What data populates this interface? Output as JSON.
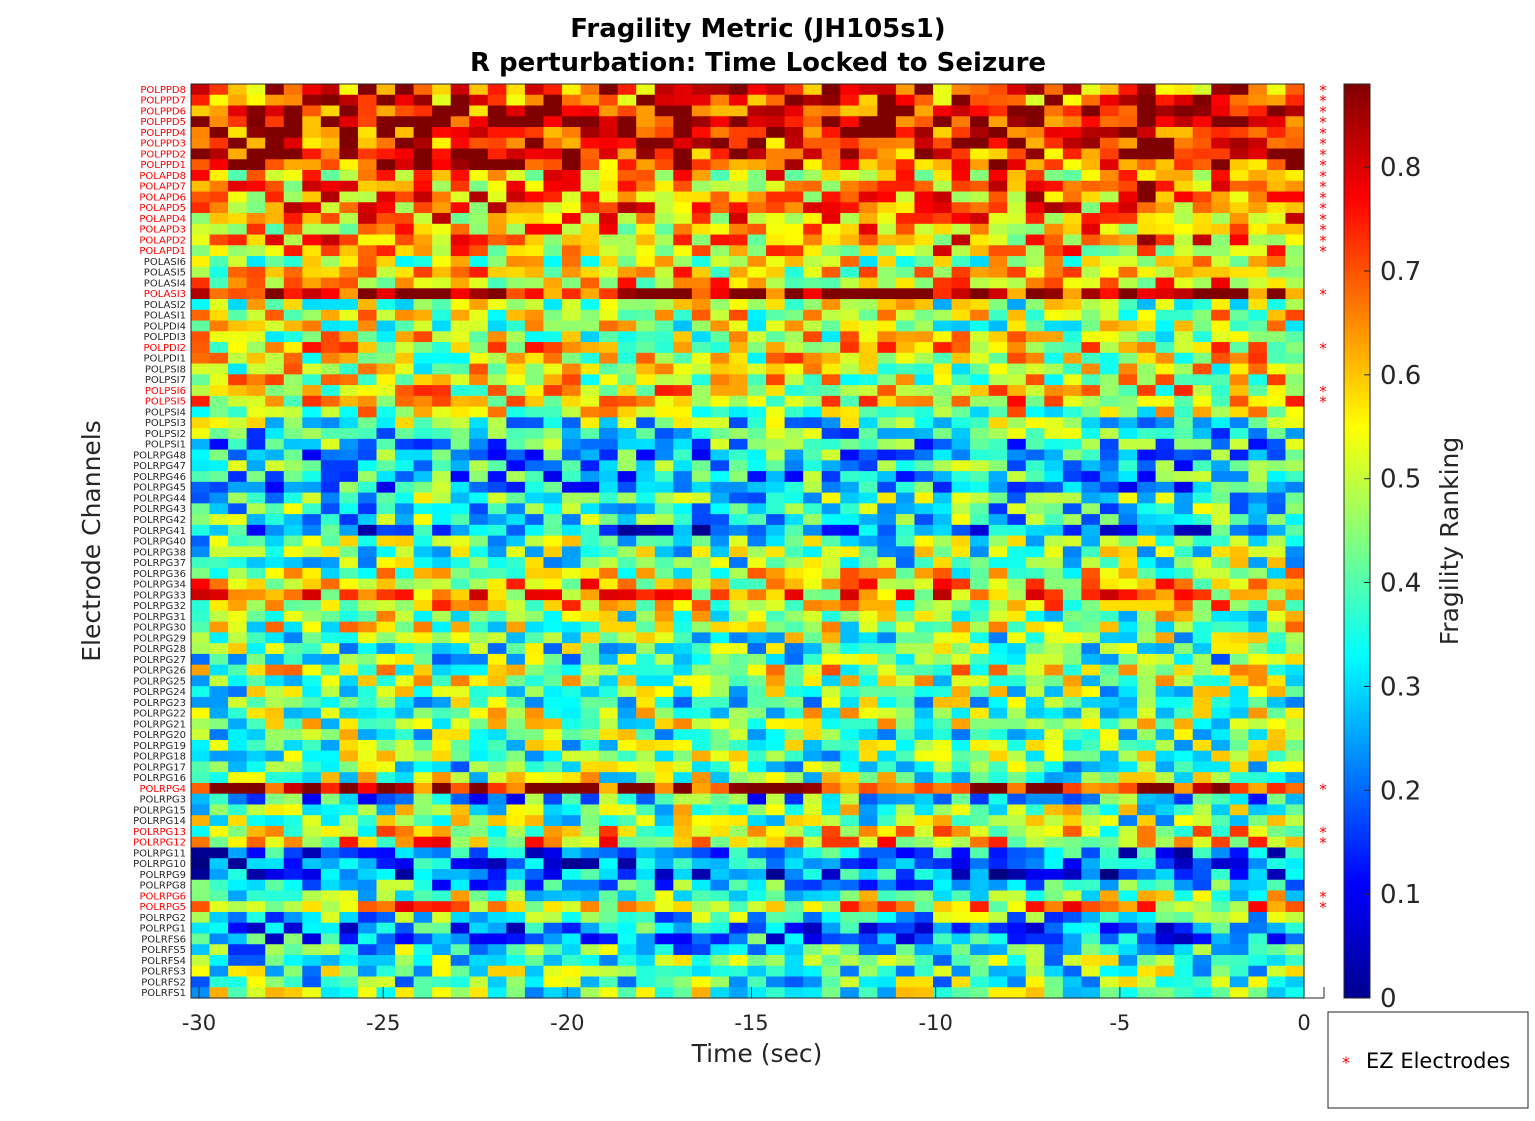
{
  "chart_data": {
    "type": "heatmap",
    "title": "Fragility Metric (JH105s1)",
    "subtitle": "R perturbation:  Time Locked to Seizure",
    "xlabel": "Time (sec)",
    "ylabel": "Electrode Channels",
    "colorbar_label": "Fragility Ranking",
    "colormap": "jet",
    "xlim": [
      -30,
      0
    ],
    "x_ticks": [
      -30,
      -25,
      -20,
      -15,
      -10,
      -5,
      0
    ],
    "clim": [
      0,
      0.88
    ],
    "colorbar_ticks": [
      0,
      0.1,
      0.2,
      0.3,
      0.4,
      0.5,
      0.6,
      0.7,
      0.8
    ],
    "n_time_windows": 60,
    "channels": [
      "POLPPD8",
      "POLPPD7",
      "POLPPD6",
      "POLPPD5",
      "POLPPD4",
      "POLPPD3",
      "POLPPD2",
      "POLPPD1",
      "POLAPD8",
      "POLAPD7",
      "POLAPD6",
      "POLAPD5",
      "POLAPD4",
      "POLAPD3",
      "POLAPD2",
      "POLAPD1",
      "POLASI6",
      "POLASI5",
      "POLASI4",
      "POLASI3",
      "POLASI2",
      "POLASI1",
      "POLPDI4",
      "POLPDI3",
      "POLPDI2",
      "POLPDI1",
      "POLPSI8",
      "POLPSI7",
      "POLPSI6",
      "POLPSI5",
      "POLPSI4",
      "POLPSI3",
      "POLPSI2",
      "POLPSI1",
      "POLRPG48",
      "POLRPG47",
      "POLRPG46",
      "POLRPG45",
      "POLRPG44",
      "POLRPG43",
      "POLRPG42",
      "POLRPG41",
      "POLRPG40",
      "POLRPG38",
      "POLRPG37",
      "POLRPG36",
      "POLRPG34",
      "POLRPG33",
      "POLRPG32",
      "POLRPG31",
      "POLRPG30",
      "POLRPG29",
      "POLRPG28",
      "POLRPG27",
      "POLRPG26",
      "POLRPG25",
      "POLRPG24",
      "POLRPG23",
      "POLRPG22",
      "POLRPG21",
      "POLRPG20",
      "POLRPG19",
      "POLRPG18",
      "POLRPG17",
      "POLRPG16",
      "POLRPG4",
      "POLRPG3",
      "POLRPG15",
      "POLRPG14",
      "POLRPG13",
      "POLRPG12",
      "POLRPG11",
      "POLRPG10",
      "POLRPG9",
      "POLRPG8",
      "POLRPG6",
      "POLRPG5",
      "POLRPG2",
      "POLRPG1",
      "POLRFS6",
      "POLRFS5",
      "POLRFS4",
      "POLRFS3",
      "POLRFS2",
      "POLRFS1"
    ],
    "ez_electrodes": [
      "POLPPD8",
      "POLPPD7",
      "POLPPD6",
      "POLPPD5",
      "POLPPD4",
      "POLPPD3",
      "POLPPD2",
      "POLPPD1",
      "POLAPD8",
      "POLAPD7",
      "POLAPD6",
      "POLAPD5",
      "POLAPD4",
      "POLAPD3",
      "POLAPD2",
      "POLAPD1",
      "POLASI3",
      "POLPDI2",
      "POLPSI6",
      "POLPSI5",
      "POLRPG4",
      "POLRPG13",
      "POLRPG12",
      "POLRPG6",
      "POLRPG5"
    ],
    "channel_mean_fragility": [
      0.72,
      0.72,
      0.78,
      0.8,
      0.78,
      0.77,
      0.76,
      0.75,
      0.6,
      0.63,
      0.65,
      0.64,
      0.63,
      0.6,
      0.62,
      0.6,
      0.5,
      0.55,
      0.58,
      0.82,
      0.45,
      0.5,
      0.48,
      0.5,
      0.55,
      0.52,
      0.5,
      0.52,
      0.55,
      0.58,
      0.5,
      0.38,
      0.35,
      0.32,
      0.3,
      0.32,
      0.3,
      0.3,
      0.38,
      0.35,
      0.35,
      0.22,
      0.4,
      0.42,
      0.4,
      0.5,
      0.58,
      0.62,
      0.55,
      0.45,
      0.48,
      0.42,
      0.4,
      0.38,
      0.5,
      0.45,
      0.42,
      0.4,
      0.45,
      0.45,
      0.42,
      0.4,
      0.42,
      0.38,
      0.45,
      0.82,
      0.3,
      0.45,
      0.42,
      0.52,
      0.58,
      0.22,
      0.2,
      0.2,
      0.3,
      0.45,
      0.6,
      0.35,
      0.25,
      0.25,
      0.35,
      0.38,
      0.4,
      0.38,
      0.42
    ],
    "seizure_onset_spike_window": 51,
    "legend": {
      "label": "EZ Electrodes",
      "marker": "*",
      "color": "#ff0000",
      "position": "bottom-right outside"
    },
    "ez_label_color": "#ff0000",
    "normal_label_color": "#262626"
  }
}
